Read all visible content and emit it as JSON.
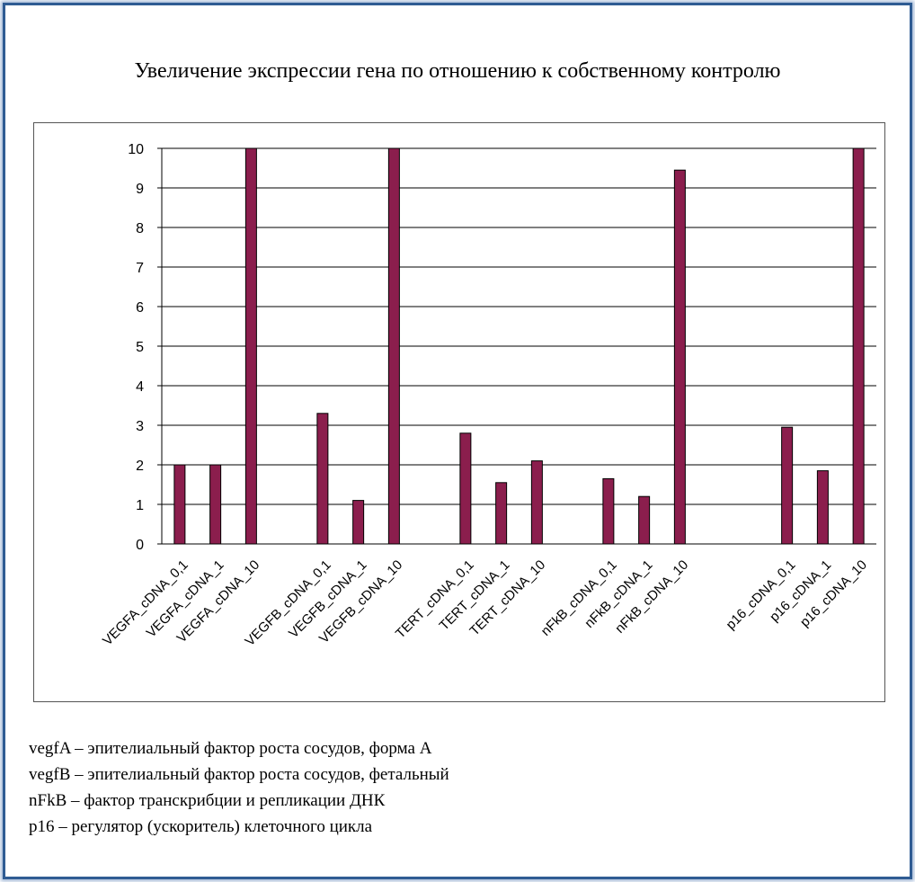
{
  "chart_data": {
    "type": "bar",
    "title": "Увеличение экспрессии гена по отношению к собственному контролю",
    "xlabel": "",
    "ylabel": "",
    "ylim": [
      0,
      10
    ],
    "yticks": [
      "0",
      "1",
      "2",
      "3",
      "4",
      "5",
      "6",
      "7",
      "8",
      "9",
      "10"
    ],
    "grid": true,
    "bar_color": "#8b1e4d",
    "categories": [
      "VEGFA_cDNA_0,1",
      "VEGFA_cDNA_1",
      "VEGFA_cDNA_10",
      "",
      "VEGFB_cDNA_0,1",
      "VEGFB_cDNA_1",
      "VEGFB_cDNA_10",
      "",
      "TERT_cDNA_0,1",
      "TERT_cDNA_1",
      "TERT_cDNA_10",
      "",
      "nFkB_cDNA_0,1",
      "nFkB_cDNA_1",
      "nFkB_cDNA_10",
      "",
      "",
      "p16_cDNA_0,1",
      "p16_cDNA_1",
      "p16_cDNA_10"
    ],
    "values": [
      2.0,
      2.0,
      10.0,
      null,
      3.3,
      1.1,
      10.0,
      null,
      2.8,
      1.55,
      2.1,
      null,
      1.65,
      1.2,
      9.45,
      null,
      null,
      2.95,
      1.85,
      10.0
    ]
  },
  "legend": [
    "vegfA – эпителиальный фактор роста сосудов, форма А",
    "vegfB – эпителиальный фактор роста сосудов, фетальный",
    "nFkB – фактор транскрибции и репликации ДНК",
    "p16 – регулятор (ускоритель) клеточного цикла"
  ]
}
